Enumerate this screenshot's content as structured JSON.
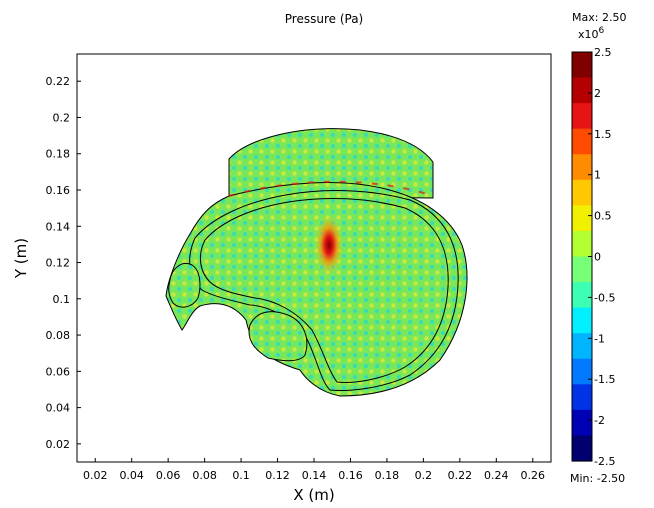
{
  "chart_data": {
    "type": "heatmap",
    "title": "Pressure (Pa)",
    "xlabel": "X (m)",
    "ylabel": "Y (m)",
    "xlim": [
      0.01,
      0.27
    ],
    "ylim": [
      0.01,
      0.235
    ],
    "x_ticks": [
      "0.02",
      "0.04",
      "0.06",
      "0.08",
      "0.1",
      "0.12",
      "0.14",
      "0.16",
      "0.18",
      "0.2",
      "0.22",
      "0.24",
      "0.26"
    ],
    "x_tick_values": [
      0.02,
      0.04,
      0.06,
      0.08,
      0.1,
      0.12,
      0.14,
      0.16,
      0.18,
      0.2,
      0.22,
      0.24,
      0.26
    ],
    "y_ticks": [
      "0.02",
      "0.04",
      "0.06",
      "0.08",
      "0.1",
      "0.12",
      "0.14",
      "0.16",
      "0.18",
      "0.2",
      "0.22"
    ],
    "y_tick_values": [
      0.02,
      0.04,
      0.06,
      0.08,
      0.1,
      0.12,
      0.14,
      0.16,
      0.18,
      0.2,
      0.22
    ],
    "colorbar": {
      "max_label": "Max: 2.50",
      "min_label": "Min: -2.50",
      "exponent_label": "x10",
      "exponent_power": "6",
      "range": [
        -2.5,
        2.5
      ],
      "tick_labels": [
        "2.5",
        "2",
        "1.5",
        "1",
        "0.5",
        "0",
        "-0.5",
        "-1",
        "-1.5",
        "-2",
        "-2.5"
      ],
      "tick_values": [
        2.5,
        2,
        1.5,
        1,
        0.5,
        0,
        -0.5,
        -1,
        -1.5,
        -2,
        -2.5
      ],
      "colors": [
        "#800000",
        "#b40000",
        "#e61414",
        "#ff4b00",
        "#ff8c00",
        "#ffc800",
        "#f0f000",
        "#b4ff32",
        "#78ff78",
        "#3cffb4",
        "#00f0ff",
        "#00b4ff",
        "#0078ff",
        "#0032e6",
        "#0000b4",
        "#00006e"
      ]
    },
    "field_color": "#78e85a",
    "peak": {
      "x": 0.15,
      "y": 0.125
    }
  }
}
